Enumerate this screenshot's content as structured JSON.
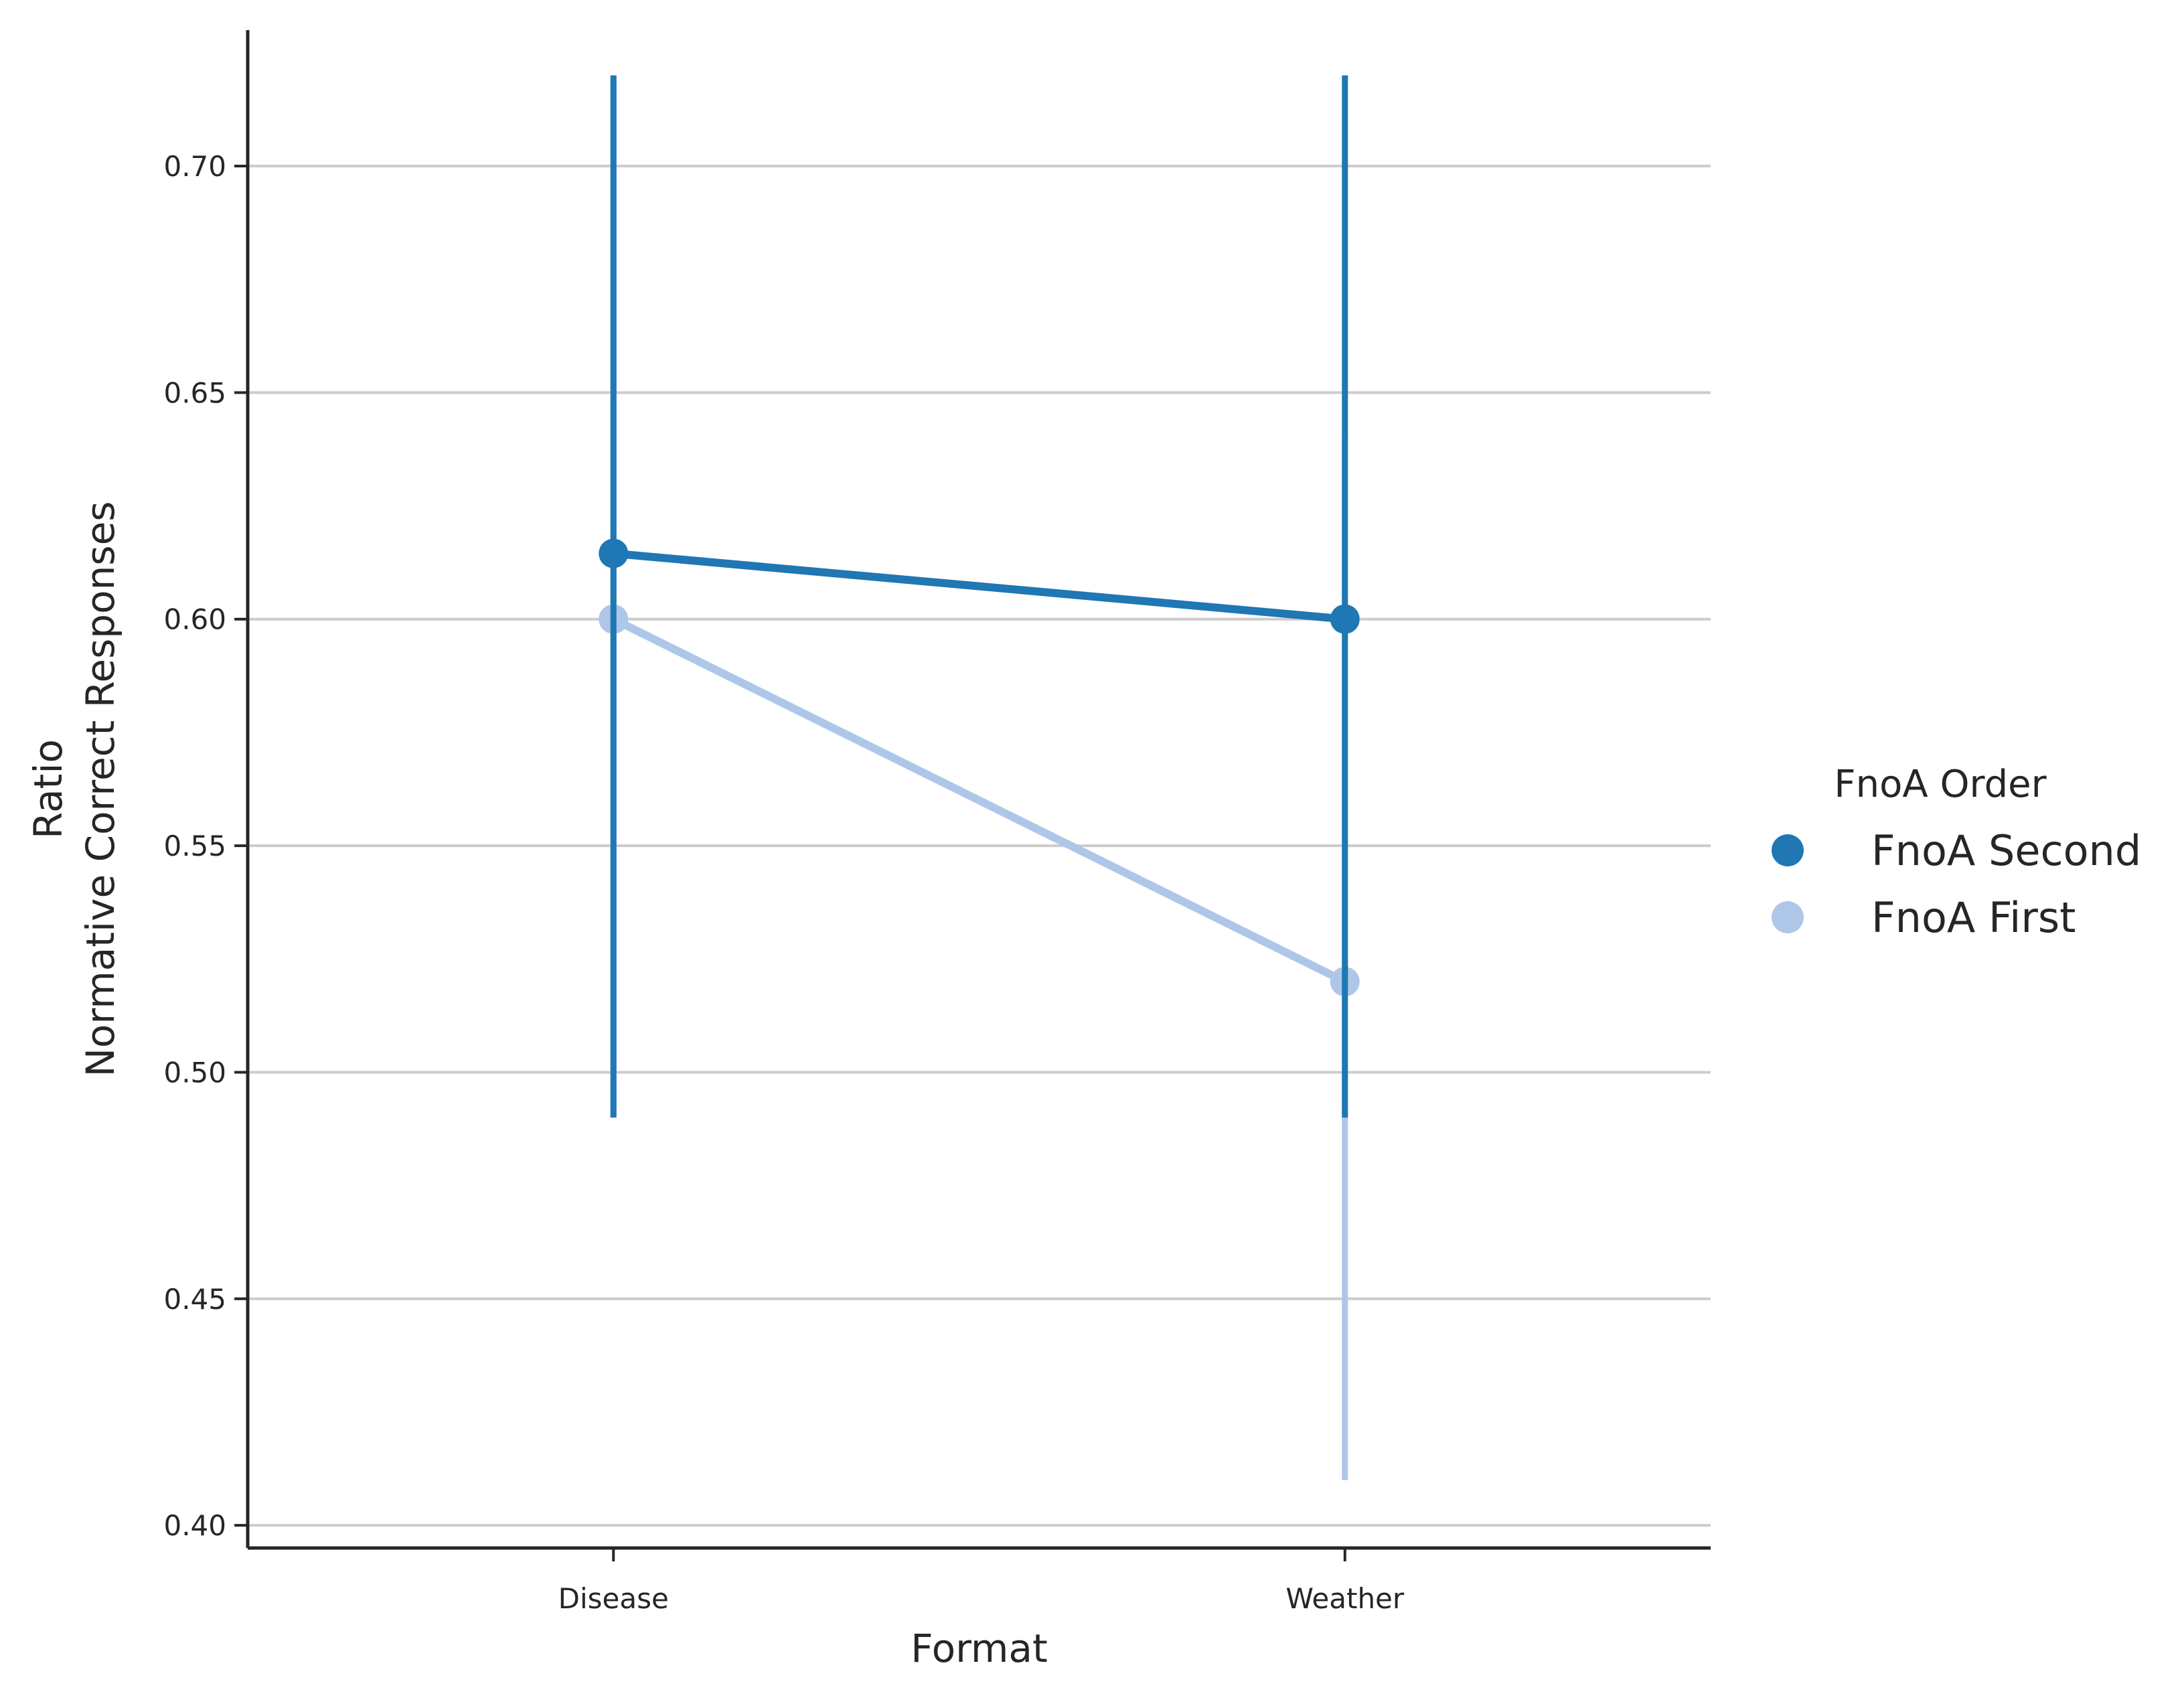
{
  "chart_data": {
    "type": "line",
    "subtype": "pointplot",
    "categories": [
      "Disease",
      "Weather"
    ],
    "xlabel": "Format",
    "ylabel_lines": [
      "Ratio",
      "Normative Correct Responses"
    ],
    "yticks": [
      "0.40",
      "0.45",
      "0.50",
      "0.55",
      "0.60",
      "0.65",
      "0.70"
    ],
    "ylim": [
      0.395,
      0.73
    ],
    "grid": "horizontal",
    "legend": {
      "title": "FnoA Order",
      "placement": "right"
    },
    "series": [
      {
        "name": "FnoA Second",
        "color": "#1f77b4",
        "values": [
          0.6145,
          0.6
        ],
        "ci_low": [
          0.49,
          0.49
        ],
        "ci_high": [
          0.72,
          0.72
        ]
      },
      {
        "name": "FnoA First",
        "color": "#aec7e8",
        "values": [
          0.6,
          0.52
        ],
        "ci_low": [
          0.49,
          0.41
        ],
        "ci_high": [
          0.72,
          0.64
        ]
      }
    ]
  }
}
